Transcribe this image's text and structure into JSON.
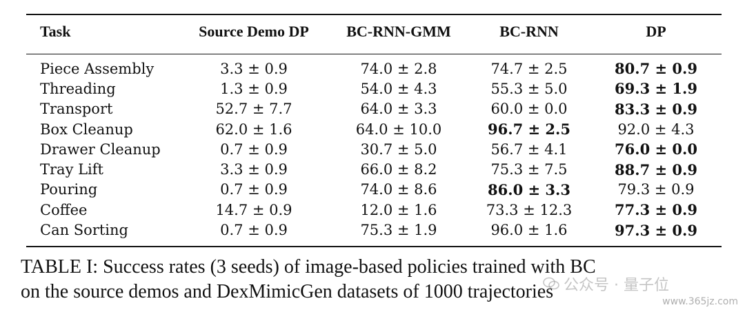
{
  "table": {
    "headers": [
      "Task",
      "Source Demo DP",
      "BC-RNN-GMM",
      "BC-RNN",
      "DP"
    ],
    "rows": [
      {
        "task": "Piece Assembly",
        "cells": [
          "3.3 ± 0.9",
          "74.0 ± 2.8",
          "74.7 ± 2.5",
          "80.7 ± 0.9"
        ],
        "best": 3
      },
      {
        "task": "Threading",
        "cells": [
          "1.3 ± 0.9",
          "54.0 ± 4.3",
          "55.3 ± 5.0",
          "69.3 ± 1.9"
        ],
        "best": 3
      },
      {
        "task": "Transport",
        "cells": [
          "52.7 ± 7.7",
          "64.0 ± 3.3",
          "60.0 ± 0.0",
          "83.3 ± 0.9"
        ],
        "best": 3
      },
      {
        "task": "Box Cleanup",
        "cells": [
          "62.0 ± 1.6",
          "64.0 ± 10.0",
          "96.7 ± 2.5",
          "92.0 ± 4.3"
        ],
        "best": 2
      },
      {
        "task": "Drawer Cleanup",
        "cells": [
          "0.7 ± 0.9",
          "30.7 ± 5.0",
          "56.7 ± 4.1",
          "76.0 ± 0.0"
        ],
        "best": 3
      },
      {
        "task": "Tray Lift",
        "cells": [
          "3.3 ± 0.9",
          "66.0 ± 8.2",
          "75.3 ± 7.5",
          "88.7 ± 0.9"
        ],
        "best": 3
      },
      {
        "task": "Pouring",
        "cells": [
          "0.7 ± 0.9",
          "74.0 ± 8.6",
          "86.0 ± 3.3",
          "79.3 ± 0.9"
        ],
        "best": 2
      },
      {
        "task": "Coffee",
        "cells": [
          "14.7 ± 0.9",
          "12.0 ± 1.6",
          "73.3 ± 12.3",
          "77.3 ± 0.9"
        ],
        "best": 3
      },
      {
        "task": "Can Sorting",
        "cells": [
          "0.7 ± 0.9",
          "75.3 ± 1.9",
          "96.0 ± 1.6",
          "97.3 ± 0.9"
        ],
        "best": 3
      }
    ]
  },
  "caption": {
    "line1": "TABLE I: Success rates (3 seeds) of image-based policies trained with BC",
    "line2": "on the source demos and DexMimicGen datasets of 1000 trajectories"
  },
  "watermark": {
    "text": "公众号 · 量子位",
    "site": "www.365jz.com",
    "icon": "wechat-icon"
  }
}
